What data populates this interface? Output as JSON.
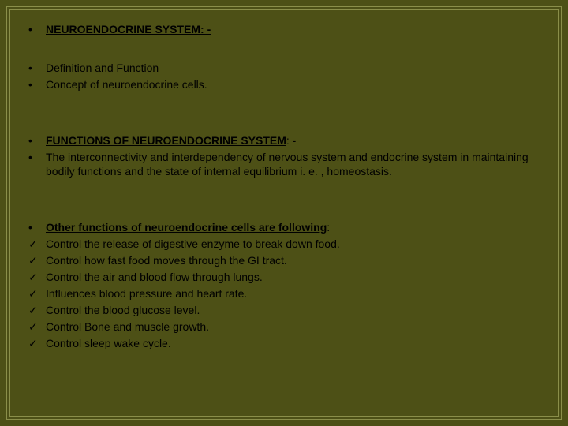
{
  "colors": {
    "background": "#4d5016",
    "border": "#8a8e4a",
    "text": "#000000"
  },
  "typography": {
    "font_family": "Arial, Helvetica, sans-serif",
    "body_fontsize": 14,
    "line_height": 1.35
  },
  "markers": {
    "bullet": "•",
    "check": "✓"
  },
  "section1": {
    "title": "NEUROENDOCRINE SYSTEM: -",
    "items": [
      "Definition and Function",
      "Concept of neuroendocrine cells."
    ]
  },
  "section2": {
    "title_prefix": "FUNCTIONS OF NEUROENDOCRINE SYSTEM",
    "title_suffix": ": -",
    "body": "The interconnectivity and interdependency of nervous system and endocrine system in maintaining bodily functions and the state of internal equilibrium i. e. , homeostasis."
  },
  "section3": {
    "title_prefix": "Other functions of neuroendocrine cells are following",
    "title_suffix": ":",
    "items": [
      "Control the release of digestive enzyme to break down food.",
      "Control how fast food moves through  the GI tract.",
      "Control the air and blood flow through lungs.",
      "Influences blood pressure and heart rate.",
      "Control the blood glucose level.",
      "Control Bone and muscle growth.",
      "Control sleep wake cycle."
    ]
  }
}
